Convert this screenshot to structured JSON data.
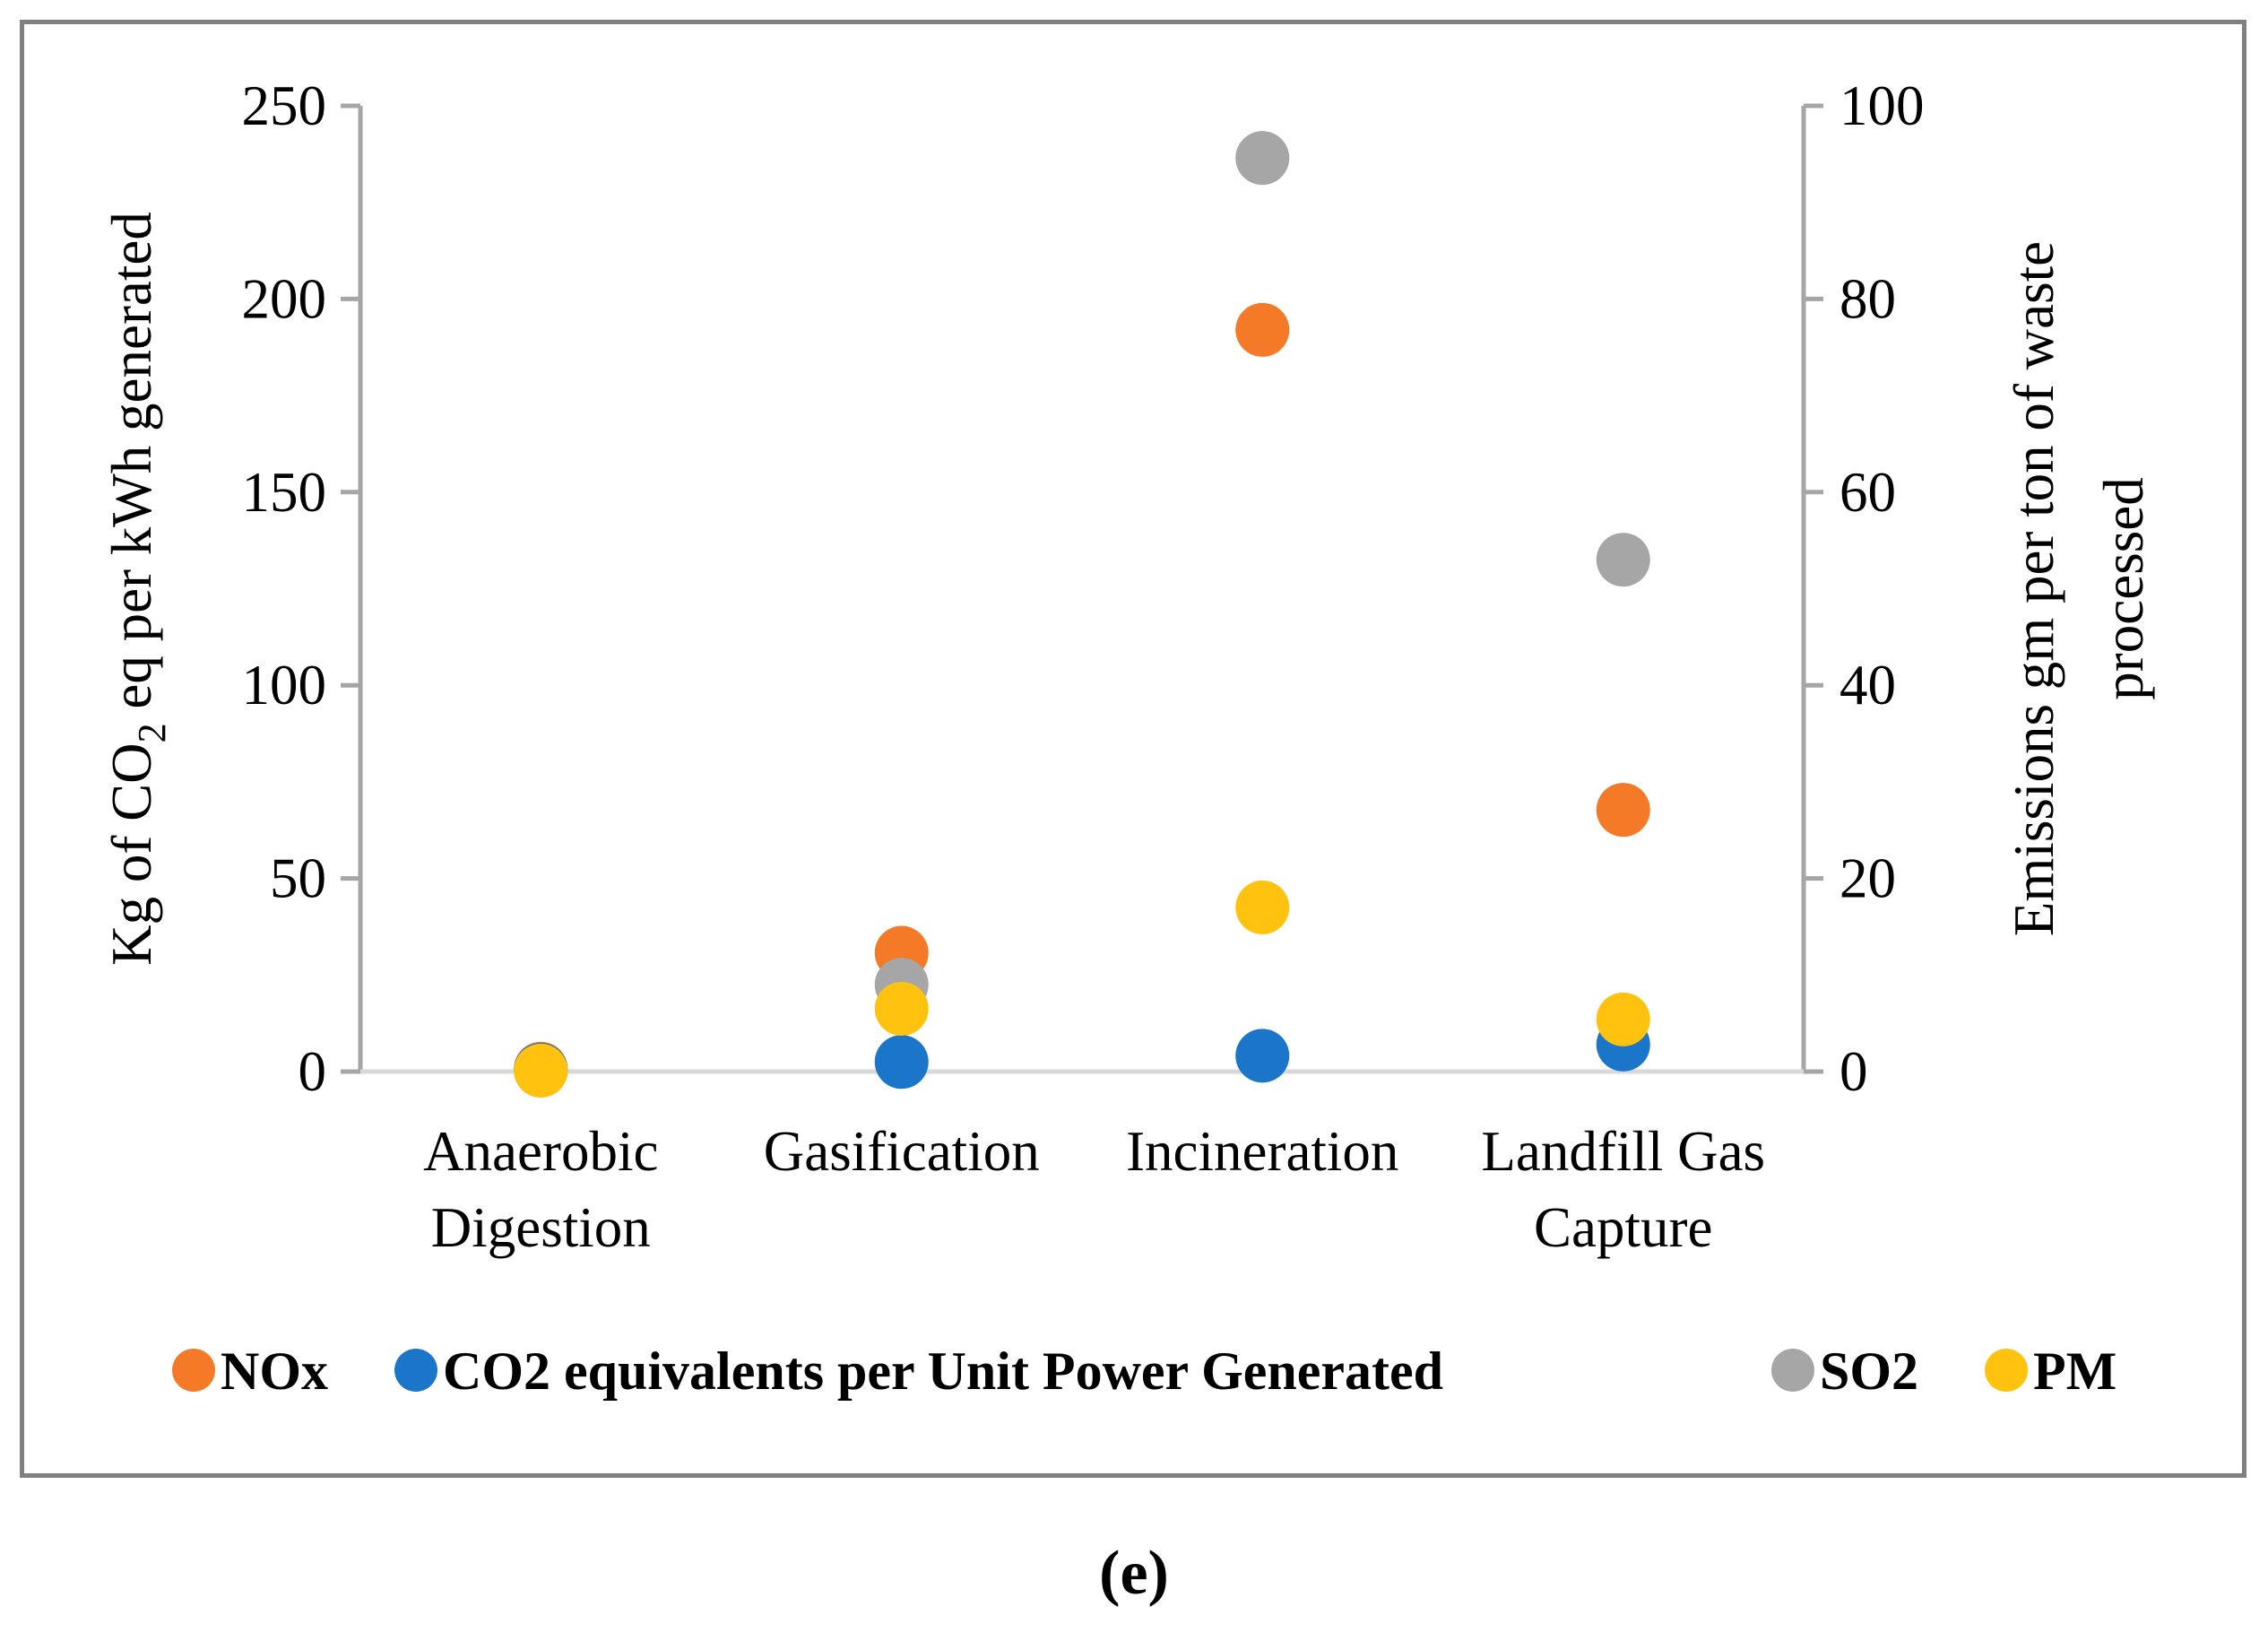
{
  "chart_data": {
    "type": "scatter",
    "categories": [
      "Anaerobic\nDigestion",
      "Gasification",
      "Incineration",
      "Landfill Gas\nCapture"
    ],
    "left_axis": {
      "label_parts": [
        "Kg of CO",
        "2",
        " eq per kWh generated"
      ],
      "ylim": [
        0,
        250
      ],
      "ticks": [
        0,
        50,
        100,
        150,
        200,
        250
      ]
    },
    "right_axis": {
      "label_lines": [
        "Emissions gm per ton of waste",
        "processed"
      ],
      "ylim": [
        0,
        100
      ],
      "ticks": [
        0,
        20,
        40,
        60,
        80,
        100
      ]
    },
    "series": [
      {
        "name": "NOx",
        "color": "#F47A28",
        "axis": "right",
        "values": [
          0.3,
          12.3,
          76.8,
          27.1
        ]
      },
      {
        "name": "CO2 equivalents per Unit Power Generated",
        "color": "#1B75C9",
        "axis": "left",
        "values": [
          0.5,
          2.5,
          4.1,
          7.0
        ]
      },
      {
        "name": "SO2",
        "color": "#A6A6A6",
        "axis": "right",
        "values": [
          0.1,
          9.0,
          94.6,
          53.0
        ]
      },
      {
        "name": "PM",
        "color": "#FFC20E",
        "axis": "right",
        "values": [
          0.1,
          6.5,
          17.0,
          5.4
        ]
      }
    ],
    "draw_order": [
      0,
      2,
      1,
      3
    ],
    "legend_position": "bottom"
  },
  "caption": "(e)"
}
